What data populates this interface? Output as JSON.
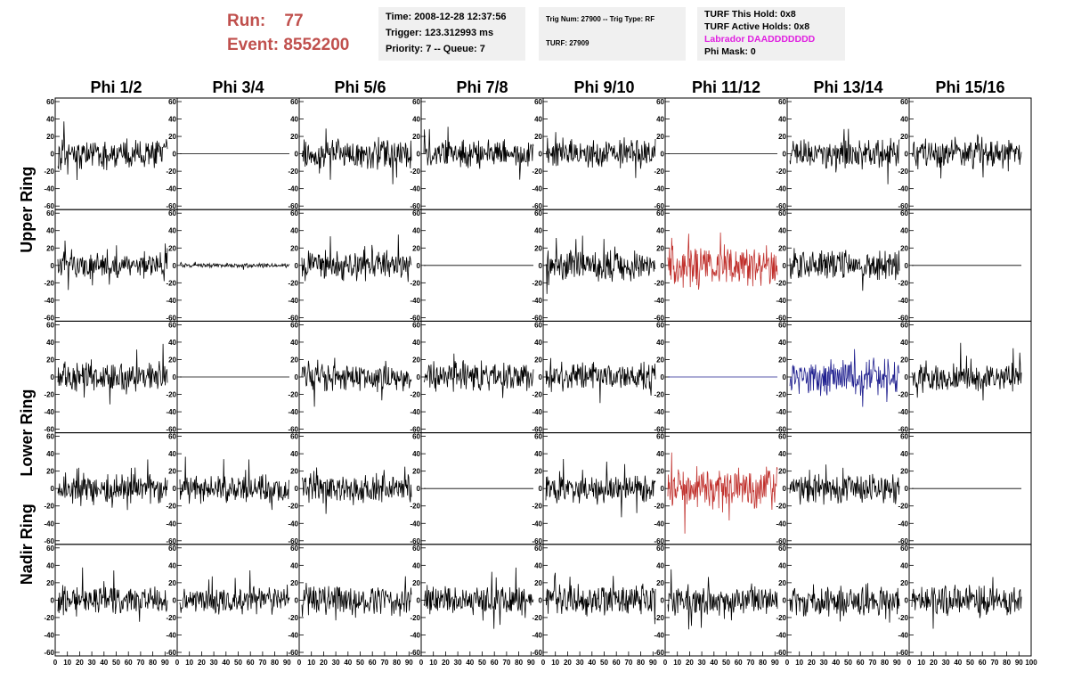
{
  "header": {
    "run_label": "Run:",
    "run_value": "77",
    "event_label": "Event:",
    "event_value": "8552200"
  },
  "time_box": {
    "time": "Time: 2008-12-28 12:37:56",
    "trigger": "Trigger: 123.312993 ms",
    "priority": "Priority: 7 -- Queue: 7"
  },
  "trig_box": {
    "trig": "Trig Num: 27900 -- Trig Type: RF",
    "turf": "TURF: 27909"
  },
  "turf_box": {
    "this_hold": "TURF This Hold: 0x8",
    "active_holds": "TURF Active Holds: 0x8",
    "labrador": "Labrador DAADDDDDDD",
    "phi_mask": "Phi Mask: 0"
  },
  "columns": [
    "Phi 1/2",
    "Phi 3/4",
    "Phi 5/6",
    "Phi 7/8",
    "Phi 9/10",
    "Phi 11/12",
    "Phi 13/14",
    "Phi 15/16"
  ],
  "ring_labels": [
    {
      "label": "Upper Ring",
      "center_row": 1
    },
    {
      "label": "Lower Ring",
      "center_row": 3
    },
    {
      "label": "Nadir Ring",
      "center_row": 4
    }
  ],
  "y_ticks": [
    "60",
    "40",
    "20",
    "0",
    "-20",
    "-40",
    "-60"
  ],
  "x_ticks": [
    "0",
    "10",
    "20",
    "30",
    "40",
    "50",
    "60",
    "70",
    "80",
    "90",
    "100"
  ],
  "colors": {
    "normal": "#000000",
    "triggered": "#c0302c",
    "blue": "#1f1f8f"
  },
  "chart_data": {
    "type": "line",
    "xlim": [
      0,
      100
    ],
    "ylim": [
      -60,
      60
    ],
    "grid": false,
    "rows": [
      [
        "noise",
        "flat",
        "noise",
        "noise",
        "noise",
        "flat",
        "noise",
        "noise"
      ],
      [
        "noise",
        "small",
        "noise",
        "flat",
        "noise",
        "red",
        "noise",
        "flat"
      ],
      [
        "noise",
        "flat",
        "noise",
        "noise",
        "noise",
        "flatblue",
        "blue",
        "noise"
      ],
      [
        "noise",
        "noise",
        "noise",
        "flat",
        "noise",
        "red",
        "noise",
        "flat"
      ],
      [
        "noise",
        "noise",
        "noise",
        "noise",
        "noise",
        "noise",
        "noise",
        "noise"
      ]
    ],
    "amplitude": {
      "noise": 14,
      "small": 2,
      "red": 20,
      "blue": 17,
      "flat": 0,
      "flatblue": 0
    }
  }
}
